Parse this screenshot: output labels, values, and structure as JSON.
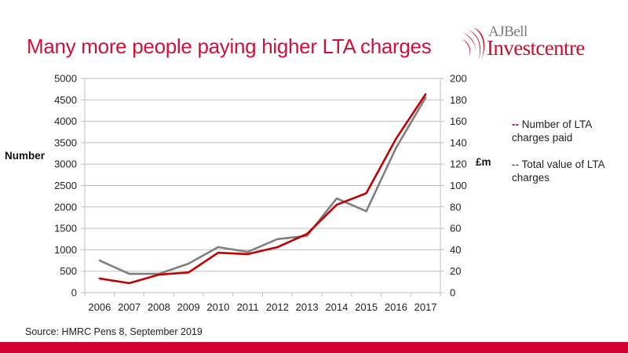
{
  "slide": {
    "title": "Many more people paying higher LTA charges",
    "logo": {
      "line1": "AJBell",
      "line2": "Investcentre",
      "icon": "swoosh-logo-icon"
    },
    "source": "Source: HMRC Pens 8, September 2019",
    "colors": {
      "title": "#d0103a",
      "footer_bar": "#d10031",
      "series_number": "#c00000",
      "series_value": "#7f7f7f"
    }
  },
  "legend": {
    "items": [
      {
        "marker": "--",
        "label": "Number of LTA charges paid",
        "color": "#c00000"
      },
      {
        "marker": "--",
        "label": "Total value of LTA charges",
        "color": "#222222"
      }
    ]
  },
  "chart_data": {
    "type": "line",
    "title": "Many more people paying higher LTA charges",
    "x": [
      "2006",
      "2007",
      "2008",
      "2009",
      "2010",
      "2011",
      "2012",
      "2013",
      "2014",
      "2015",
      "2016",
      "2017"
    ],
    "xlabel": "",
    "ylabel": "Number",
    "y2label": "£m",
    "ylim": [
      0,
      5000
    ],
    "y2lim": [
      0,
      200
    ],
    "yticks": [
      "0",
      "500",
      "1000",
      "1500",
      "2000",
      "2500",
      "3000",
      "3500",
      "4000",
      "4500",
      "5000"
    ],
    "y2ticks": [
      "0",
      "20",
      "40",
      "60",
      "80",
      "100",
      "120",
      "140",
      "160",
      "180",
      "200"
    ],
    "grid": true,
    "legend_position": "right",
    "series": [
      {
        "name": "Number of LTA charges paid",
        "axis": "left",
        "color": "#c00000",
        "values": [
          330,
          220,
          420,
          470,
          930,
          900,
          1060,
          1370,
          2050,
          2320,
          3590,
          4630
        ]
      },
      {
        "name": "Total value of LTA charges",
        "axis": "right",
        "color": "#7f7f7f",
        "values": [
          30,
          17.5,
          17.5,
          27,
          42.5,
          38,
          50,
          53,
          88,
          76,
          135,
          182
        ]
      }
    ]
  }
}
